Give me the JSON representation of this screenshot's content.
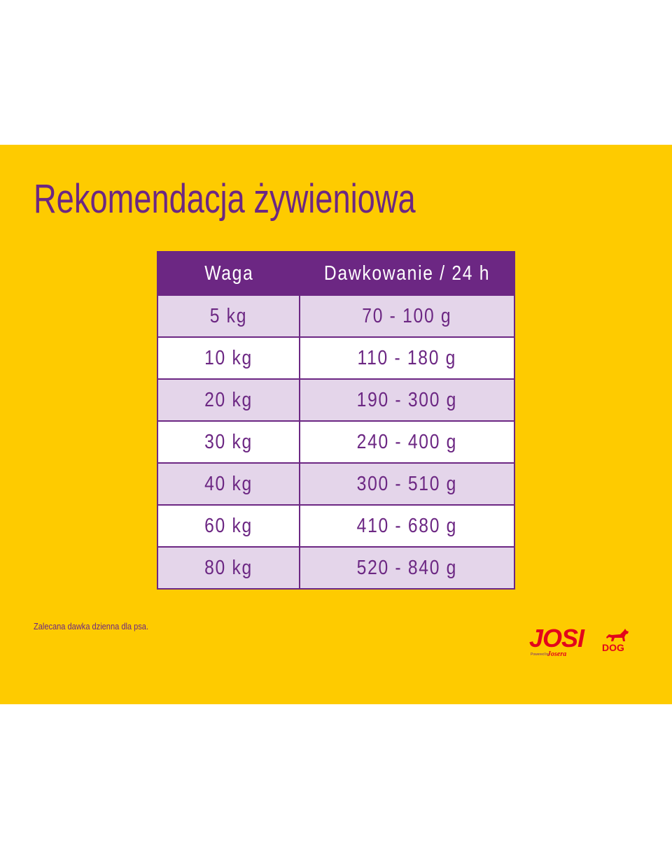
{
  "title": "Rekomendacja żywieniowa",
  "table": {
    "headers": {
      "weight": "Waga",
      "dose": "Dawkowanie / 24 h"
    },
    "rows": [
      {
        "weight": "5 kg",
        "dose": "70 - 100 g"
      },
      {
        "weight": "10 kg",
        "dose": "110 - 180 g"
      },
      {
        "weight": "20 kg",
        "dose": "190 - 300 g"
      },
      {
        "weight": "30 kg",
        "dose": "240 - 400 g"
      },
      {
        "weight": "40 kg",
        "dose": "300 - 510 g"
      },
      {
        "weight": "60 kg",
        "dose": "410 - 680 g"
      },
      {
        "weight": "80 kg",
        "dose": "520 - 840 g"
      }
    ]
  },
  "note": "Zalecana dawka dzienna dla psa.",
  "logo": {
    "brand": "JOSI",
    "sub": "DOG",
    "powered_by": "Powered by",
    "maker": "Josera",
    "icon": "dog-icon"
  },
  "colors": {
    "background": "#fecb00",
    "accent": "#6c2783",
    "row_shade": "#e4d5ea",
    "logo_red": "#e3051b"
  }
}
